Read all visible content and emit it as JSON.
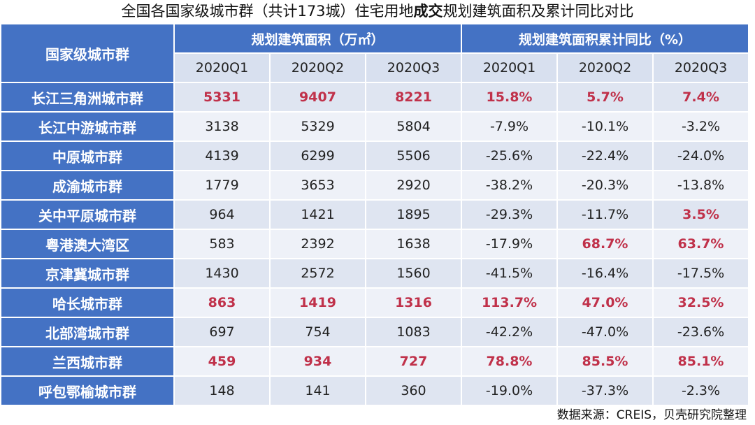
{
  "title": {
    "prefix": "全国各国家级城市群（共计173城）住宅用地",
    "bold": "成交",
    "suffix": "规划建筑面积及累计同比对比"
  },
  "table": {
    "corner_header": "国家级城市群",
    "group_headers": [
      "规划建筑面积（万㎡）",
      "规划建筑面积累计同比（%）"
    ],
    "quarters": [
      "2020Q1",
      "2020Q2",
      "2020Q3",
      "2020Q1",
      "2020Q2",
      "2020Q3"
    ],
    "rows": [
      {
        "name": "长江三角洲城市群",
        "values": [
          "5331",
          "9407",
          "8221",
          "15.8%",
          "5.7%",
          "7.4%"
        ],
        "highlight": [
          true,
          true,
          true,
          true,
          true,
          true
        ]
      },
      {
        "name": "长江中游城市群",
        "values": [
          "3138",
          "5329",
          "5804",
          "-7.9%",
          "-10.1%",
          "-3.2%"
        ],
        "highlight": [
          false,
          false,
          false,
          false,
          false,
          false
        ]
      },
      {
        "name": "中原城市群",
        "values": [
          "4139",
          "6299",
          "5506",
          "-25.6%",
          "-22.4%",
          "-24.0%"
        ],
        "highlight": [
          false,
          false,
          false,
          false,
          false,
          false
        ]
      },
      {
        "name": "成渝城市群",
        "values": [
          "1779",
          "3653",
          "2920",
          "-38.2%",
          "-20.3%",
          "-13.8%"
        ],
        "highlight": [
          false,
          false,
          false,
          false,
          false,
          false
        ]
      },
      {
        "name": "关中平原城市群",
        "values": [
          "964",
          "1421",
          "1895",
          "-29.3%",
          "-11.7%",
          "3.5%"
        ],
        "highlight": [
          false,
          false,
          false,
          false,
          false,
          true
        ]
      },
      {
        "name": "粤港澳大湾区",
        "values": [
          "583",
          "2392",
          "1638",
          "-17.9%",
          "68.7%",
          "63.7%"
        ],
        "highlight": [
          false,
          false,
          false,
          false,
          true,
          true
        ]
      },
      {
        "name": "京津冀城市群",
        "values": [
          "1430",
          "2572",
          "1560",
          "-41.5%",
          "-16.4%",
          "-17.5%"
        ],
        "highlight": [
          false,
          false,
          false,
          false,
          false,
          false
        ]
      },
      {
        "name": "哈长城市群",
        "values": [
          "863",
          "1419",
          "1316",
          "113.7%",
          "47.0%",
          "32.5%"
        ],
        "highlight": [
          true,
          true,
          true,
          true,
          true,
          true
        ]
      },
      {
        "name": "北部湾城市群",
        "values": [
          "697",
          "754",
          "1083",
          "-42.2%",
          "-47.0%",
          "-23.6%"
        ],
        "highlight": [
          false,
          false,
          false,
          false,
          false,
          false
        ]
      },
      {
        "name": "兰西城市群",
        "values": [
          "459",
          "934",
          "727",
          "78.8%",
          "85.5%",
          "85.1%"
        ],
        "highlight": [
          true,
          true,
          true,
          true,
          true,
          true
        ]
      },
      {
        "name": "呼包鄂榆城市群",
        "values": [
          "148",
          "141",
          "360",
          "-19.0%",
          "-37.3%",
          "-2.3%"
        ],
        "highlight": [
          false,
          false,
          false,
          false,
          false,
          false
        ]
      }
    ]
  },
  "source": "数据来源：CREIS，贝壳研究院整理",
  "colors": {
    "header_blue": "#4472c4",
    "highlight_red": "#c0314a",
    "cell_dark": "#dfe5f1",
    "cell_light": "#eef1f8"
  }
}
